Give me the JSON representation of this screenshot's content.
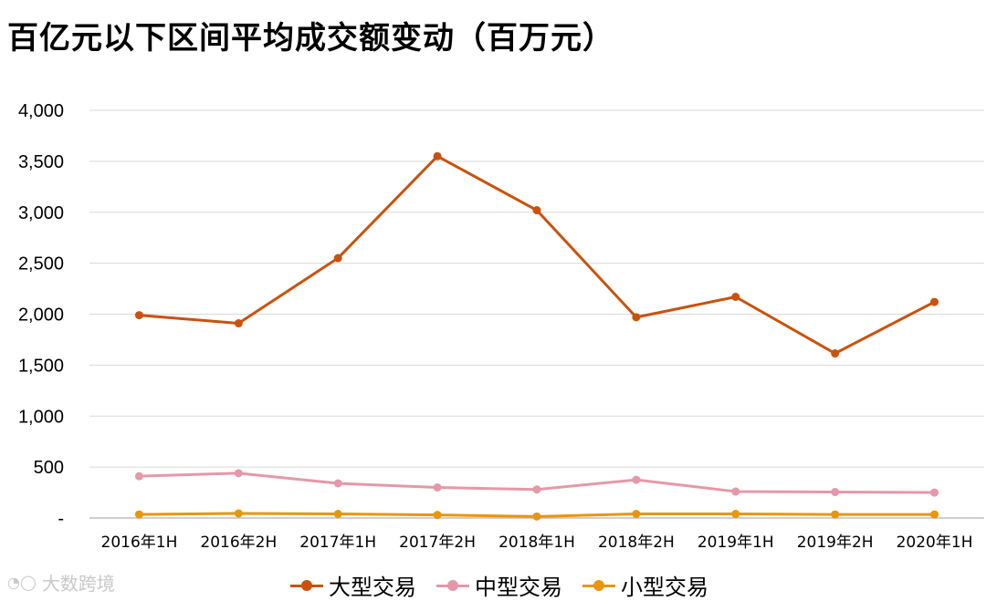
{
  "chart_data": {
    "type": "line",
    "title": "百亿元以下区间平均成交额变动（百万元）",
    "categories": [
      "2016年1H",
      "2016年2H",
      "2017年1H",
      "2017年2H",
      "2018年1H",
      "2018年2H",
      "2019年1H",
      "2019年2H",
      "2020年1H"
    ],
    "ylim": [
      0,
      4000
    ],
    "yticks": [
      0,
      500,
      1000,
      1500,
      2000,
      2500,
      3000,
      3500,
      4000
    ],
    "ytick_labels": [
      "-",
      "500",
      "1,000",
      "1,500",
      "2,000",
      "2,500",
      "3,000",
      "3,500",
      "4,000"
    ],
    "grid": true,
    "legend_position": "bottom",
    "series": [
      {
        "name": "大型交易",
        "color": "#c9520d",
        "values": [
          1990,
          1910,
          2550,
          3550,
          3020,
          1970,
          2170,
          1615,
          2120
        ]
      },
      {
        "name": "中型交易",
        "color": "#e598a8",
        "values": [
          410,
          440,
          340,
          300,
          280,
          375,
          260,
          255,
          250
        ]
      },
      {
        "name": "小型交易",
        "color": "#e8960e",
        "values": [
          35,
          45,
          40,
          30,
          15,
          40,
          40,
          35,
          35
        ]
      }
    ]
  },
  "watermark": {
    "text": "大数跨境",
    "icon": "logo-icon"
  }
}
